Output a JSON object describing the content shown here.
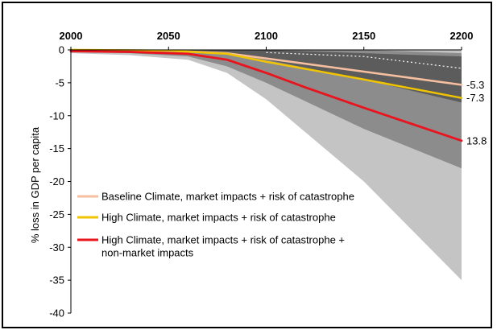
{
  "chart_data": {
    "type": "area",
    "ylabel": "% loss in GDP per capita",
    "xlabel": "",
    "x_ticks": [
      2000,
      2050,
      2100,
      2150,
      2200
    ],
    "y_ticks": [
      0,
      -5,
      -10,
      -15,
      -20,
      -25,
      -30,
      -35,
      -40
    ],
    "xlim": [
      2000,
      2200
    ],
    "ylim": [
      -40,
      0
    ],
    "x_axis_position": "top",
    "grid": false,
    "legend_position": "lower-left",
    "bands": [
      {
        "x": [
          2000,
          2030,
          2060,
          2080,
          2100,
          2150,
          2200
        ],
        "lower": [
          -0.5,
          -0.8,
          -1.5,
          -3.5,
          -7.5,
          -20,
          -35
        ],
        "upper": [
          0,
          0,
          0,
          0,
          0,
          0,
          0
        ],
        "color": "#c4c4c4"
      },
      {
        "x": [
          2000,
          2030,
          2060,
          2080,
          2100,
          2150,
          2200
        ],
        "lower": [
          -0.3,
          -0.5,
          -1.0,
          -2.5,
          -5.0,
          -12.0,
          -18.0
        ],
        "upper": [
          0,
          0,
          0,
          0,
          0,
          0,
          -0.5
        ],
        "color": "#8c8c8c"
      },
      {
        "x": [
          2000,
          2050,
          2080,
          2100,
          2150,
          2200
        ],
        "lower": [
          0,
          -0.1,
          -0.5,
          -1.5,
          -4.5,
          -8.0
        ],
        "upper": [
          0,
          0,
          0,
          0,
          -0.5,
          -1.0
        ],
        "color": "#5c5c5c"
      }
    ],
    "series": [
      {
        "name": "Baseline Climate, market impacts + risk of catastrophe",
        "color": "#f5bfa0",
        "x": [
          2000,
          2050,
          2080,
          2100,
          2150,
          2200
        ],
        "values": [
          0,
          -0.1,
          -0.5,
          -1.3,
          -3.3,
          -5.3
        ],
        "end_label": "-5.3"
      },
      {
        "name": "High Climate, market impacts + risk of catastrophe",
        "color": "#f0c400",
        "x": [
          2000,
          2050,
          2080,
          2100,
          2150,
          2200
        ],
        "values": [
          0,
          -0.1,
          -0.6,
          -1.8,
          -4.5,
          -7.3
        ],
        "end_label": "-7.3"
      },
      {
        "name": "High Climate, market impacts + risk of catastrophe + non-market impacts",
        "legend_lines": [
          "High Climate, market impacts + risk of catastrophe +",
          "non-market impacts"
        ],
        "color": "#e8141e",
        "x": [
          2000,
          2030,
          2060,
          2080,
          2100,
          2120,
          2150,
          2200
        ],
        "values": [
          -0.2,
          -0.3,
          -0.6,
          -1.5,
          -3.5,
          -5.7,
          -8.8,
          -13.8
        ],
        "end_label": "13.8"
      }
    ],
    "dotted_line": {
      "x": [
        2100,
        2150,
        2200
      ],
      "values": [
        -0.4,
        -1.0,
        -2.8
      ],
      "color": "#ffffff"
    }
  }
}
